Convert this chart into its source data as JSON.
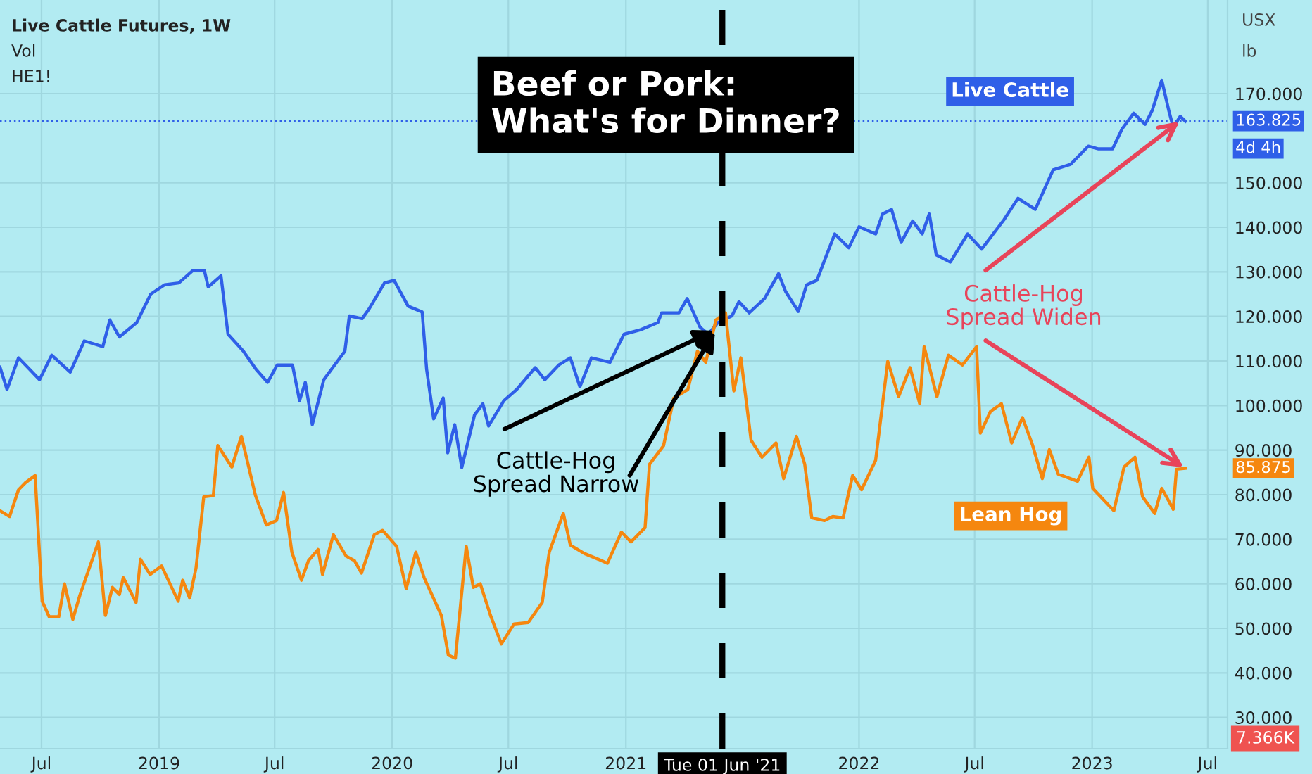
{
  "chart_data": {
    "type": "line",
    "title": "Beef or Pork:\nWhat's for Dinner?",
    "xlim": [
      "2018-04-27",
      "2023-08-01"
    ],
    "xticks": [
      {
        "value": "2018-07-01",
        "label": "Jul"
      },
      {
        "value": "2019-01-01",
        "label": "2019"
      },
      {
        "value": "2019-07-01",
        "label": "Jul"
      },
      {
        "value": "2020-01-01",
        "label": "2020"
      },
      {
        "value": "2020-07-01",
        "label": "Jul"
      },
      {
        "value": "2021-01-01",
        "label": "2021"
      },
      {
        "value": "2022-01-01",
        "label": "2022"
      },
      {
        "value": "2022-07-01",
        "label": "Jul"
      },
      {
        "value": "2023-01-01",
        "label": "2023"
      },
      {
        "value": "2023-07-01",
        "label": "Jul"
      }
    ],
    "ylim": [
      23,
      191
    ],
    "yticks": [
      {
        "value": 30,
        "label": "30.000"
      },
      {
        "value": 40,
        "label": "40.000"
      },
      {
        "value": 50,
        "label": "50.000"
      },
      {
        "value": 60,
        "label": "60.000"
      },
      {
        "value": 70,
        "label": "70.000"
      },
      {
        "value": 80,
        "label": "80.000"
      },
      {
        "value": 90,
        "label": "90.000"
      },
      {
        "value": 100,
        "label": "100.000"
      },
      {
        "value": 110,
        "label": "110.000"
      },
      {
        "value": 120,
        "label": "120.000"
      },
      {
        "value": 130,
        "label": "130.000"
      },
      {
        "value": 140,
        "label": "140.000"
      },
      {
        "value": 150,
        "label": "150.000"
      },
      {
        "value": 170,
        "label": "170.000"
      }
    ],
    "grid": true,
    "legend": false,
    "marker": "none",
    "line_style": "solid",
    "series": [
      {
        "name": "Live Cattle",
        "color": "#2f5fe8",
        "x": [
          "2018-04-27",
          "2018-05-08",
          "2018-05-26",
          "2018-06-28",
          "2018-07-17",
          "2018-08-15",
          "2018-09-06",
          "2018-10-05",
          "2018-10-16",
          "2018-10-31",
          "2018-11-27",
          "2018-12-19",
          "2019-01-10",
          "2019-02-01",
          "2019-02-23",
          "2019-03-13",
          "2019-03-19",
          "2019-04-08",
          "2019-04-19",
          "2019-05-13",
          "2019-06-02",
          "2019-06-20",
          "2019-07-05",
          "2019-07-29",
          "2019-08-09",
          "2019-08-18",
          "2019-08-29",
          "2019-09-16",
          "2019-10-19",
          "2019-10-26",
          "2019-11-15",
          "2019-11-26",
          "2019-12-20",
          "2020-01-04",
          "2020-01-26",
          "2020-02-17",
          "2020-02-24",
          "2020-03-06",
          "2020-03-21",
          "2020-03-28",
          "2020-04-08",
          "2020-04-19",
          "2020-05-09",
          "2020-05-22",
          "2020-05-31",
          "2020-06-24",
          "2020-07-14",
          "2020-08-12",
          "2020-08-27",
          "2020-09-18",
          "2020-10-06",
          "2020-10-21",
          "2020-11-08",
          "2020-12-07",
          "2020-12-29",
          "2021-01-24",
          "2021-02-20",
          "2021-02-26",
          "2021-03-25",
          "2021-04-07",
          "2021-04-27",
          "2021-05-10",
          "2021-05-25",
          "2021-06-16",
          "2021-06-27",
          "2021-07-13",
          "2021-08-06",
          "2021-08-28",
          "2021-09-08",
          "2021-09-28",
          "2021-10-11",
          "2021-10-27",
          "2021-11-07",
          "2021-11-24",
          "2021-12-16",
          "2022-01-01",
          "2022-01-27",
          "2022-02-07",
          "2022-02-21",
          "2022-03-08",
          "2022-03-26",
          "2022-04-10",
          "2022-04-21",
          "2022-05-02",
          "2022-05-24",
          "2022-06-20",
          "2022-07-12",
          "2022-08-16",
          "2022-09-07",
          "2022-10-04",
          "2022-11-01",
          "2022-11-28",
          "2022-12-26",
          "2023-01-11",
          "2023-02-02",
          "2023-02-17",
          "2023-03-07",
          "2023-03-25",
          "2023-04-05",
          "2023-04-20",
          "2023-05-01",
          "2023-05-08",
          "2023-05-19",
          "2023-05-27"
        ],
        "values": [
          108.6,
          103.6,
          110.7,
          105.8,
          111.3,
          107.5,
          114.5,
          113.2,
          119.2,
          115.4,
          118.6,
          125,
          127.1,
          127.5,
          130.3,
          130.3,
          126.6,
          129.1,
          116,
          112.2,
          108.1,
          105.2,
          109.1,
          109.1,
          101.1,
          105.2,
          95.7,
          105.8,
          112.2,
          120.1,
          119.5,
          121.7,
          127.5,
          128.1,
          122.3,
          121,
          108.1,
          97,
          101.7,
          89.4,
          95.7,
          86.1,
          97.9,
          100.4,
          95.4,
          101.1,
          103.6,
          108.5,
          105.8,
          109.1,
          110.7,
          104.2,
          110.7,
          109.7,
          116,
          117,
          118.6,
          120.8,
          120.8,
          124,
          117.6,
          116,
          118.6,
          120.1,
          123.3,
          120.8,
          124,
          129.6,
          125.6,
          121.1,
          127.1,
          128.1,
          132.2,
          138.5,
          135.4,
          140.1,
          138.5,
          143,
          144,
          136.6,
          141.4,
          138.5,
          143,
          133.8,
          132.2,
          138.5,
          135.1,
          141.7,
          146.5,
          144,
          152.9,
          154.1,
          158.2,
          157.6,
          157.6,
          162.1,
          165.6,
          163.1,
          166.2,
          173,
          166.2,
          162.4,
          164.9,
          163.8
        ]
      },
      {
        "name": "Lean Hog",
        "color": "#f5870f",
        "x": [
          "2018-04-27",
          "2018-05-12",
          "2018-05-26",
          "2018-06-06",
          "2018-06-21",
          "2018-07-02",
          "2018-07-13",
          "2018-07-28",
          "2018-08-06",
          "2018-08-19",
          "2018-08-30",
          "2018-09-28",
          "2018-10-09",
          "2018-10-20",
          "2018-10-31",
          "2018-11-06",
          "2018-11-26",
          "2018-12-03",
          "2018-12-18",
          "2019-01-05",
          "2019-01-31",
          "2019-02-07",
          "2019-02-18",
          "2019-02-28",
          "2019-03-12",
          "2019-03-27",
          "2019-04-03",
          "2019-04-25",
          "2019-05-10",
          "2019-06-01",
          "2019-06-18",
          "2019-07-04",
          "2019-07-15",
          "2019-07-28",
          "2019-08-12",
          "2019-08-23",
          "2019-09-07",
          "2019-09-14",
          "2019-10-01",
          "2019-10-21",
          "2019-11-03",
          "2019-11-14",
          "2019-12-04",
          "2019-12-17",
          "2020-01-08",
          "2020-01-23",
          "2020-02-07",
          "2020-02-20",
          "2020-03-18",
          "2020-03-29",
          "2020-04-09",
          "2020-04-26",
          "2020-05-07",
          "2020-05-18",
          "2020-06-03",
          "2020-06-20",
          "2020-07-10",
          "2020-08-01",
          "2020-08-23",
          "2020-09-03",
          "2020-09-25",
          "2020-10-06",
          "2020-10-28",
          "2020-11-19",
          "2020-12-03",
          "2020-12-25",
          "2021-01-09",
          "2021-01-31",
          "2021-02-07",
          "2021-03-01",
          "2021-03-17",
          "2021-04-08",
          "2021-04-23",
          "2021-05-06",
          "2021-05-22",
          "2021-06-06",
          "2021-06-19",
          "2021-06-30",
          "2021-07-16",
          "2021-08-02",
          "2021-08-24",
          "2021-09-05",
          "2021-09-25",
          "2021-10-08",
          "2021-10-19",
          "2021-11-08",
          "2021-11-21",
          "2021-12-07",
          "2021-12-22",
          "2022-01-05",
          "2022-01-27",
          "2022-02-15",
          "2022-03-04",
          "2022-03-22",
          "2022-04-06",
          "2022-04-13",
          "2022-05-03",
          "2022-05-21",
          "2022-06-12",
          "2022-07-04",
          "2022-07-10",
          "2022-07-26",
          "2022-08-12",
          "2022-08-28",
          "2022-09-14",
          "2022-09-30",
          "2022-10-15",
          "2022-10-26",
          "2022-11-09",
          "2022-12-09",
          "2022-12-27",
          "2023-01-02",
          "2023-02-04",
          "2023-02-20",
          "2023-03-09",
          "2023-03-21",
          "2023-04-09",
          "2023-04-20",
          "2023-05-02",
          "2023-05-08",
          "2023-05-13",
          "2023-05-27"
        ],
        "values": [
          76.4,
          75.1,
          81.1,
          82.7,
          84.3,
          56.1,
          52.6,
          52.6,
          60,
          52,
          57.4,
          69.4,
          52.9,
          59.2,
          57.6,
          61.4,
          55.8,
          65.5,
          62.1,
          64,
          56.1,
          60.8,
          56.8,
          63.6,
          79.5,
          79.8,
          91,
          86.2,
          93.1,
          79.8,
          73.2,
          74.2,
          80.5,
          67.1,
          60.8,
          65.2,
          67.7,
          62.1,
          71,
          66.2,
          65.2,
          62.4,
          71,
          72,
          68.4,
          58.9,
          67.1,
          61.4,
          52.9,
          44,
          43.3,
          68.4,
          59.2,
          60,
          52.9,
          46.5,
          51,
          51.3,
          55.8,
          67.1,
          75.8,
          68.7,
          66.8,
          65.5,
          64.6,
          71.6,
          69.4,
          72.6,
          86.8,
          91,
          101.7,
          103.6,
          112.2,
          109.7,
          119.2,
          120.8,
          103.3,
          110.7,
          92.2,
          88.4,
          91.6,
          83.6,
          93.1,
          86.8,
          74.8,
          74.2,
          75.1,
          74.8,
          84.3,
          81.1,
          87.7,
          109.9,
          102,
          108.5,
          100.4,
          113.2,
          102,
          111.3,
          109.1,
          113.2,
          93.8,
          98.7,
          100.4,
          91.6,
          97.3,
          91,
          83.6,
          90.1,
          84.6,
          83,
          88.4,
          81.4,
          76.4,
          86.2,
          88.4,
          79.5,
          75.8,
          81.4,
          78.3,
          76.7,
          85.7,
          85.9
        ]
      }
    ],
    "ref_lines": [
      {
        "axis": "x",
        "value": "2021-06-01",
        "label": "Tue 01 Jun '21",
        "color": "#000000",
        "line_style": "dashed"
      },
      {
        "axis": "y",
        "value": 163.825,
        "label": "163.825",
        "color": "#2f5fe8",
        "line_style": "dotted"
      }
    ],
    "annotations": [
      "Live Cattle Futures, 1W",
      "Vol",
      "HE1!",
      "USX",
      "lb",
      "4d 4h",
      "85.875",
      "7.366K",
      {
        "text": "Cattle-Hog\nSpread Narrow",
        "x": "2021-05-22",
        "y": 117
      },
      {
        "text": "Cattle-Hog\nSpread Widen",
        "x": "2023-05-20",
        "y": 164
      }
    ]
  }
}
